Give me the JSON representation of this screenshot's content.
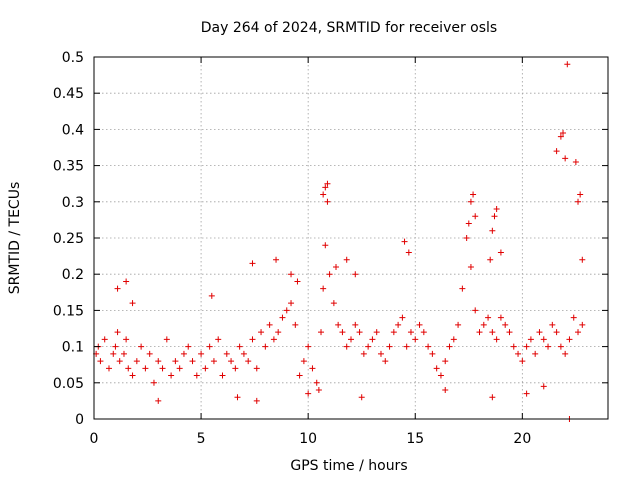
{
  "chart_data": {
    "type": "scatter",
    "title": "Day 264 of 2024, SRMTID for receiver osls",
    "xlabel": "GPS time / hours",
    "ylabel": "SRMTID / TECUs",
    "xlim": [
      0,
      24
    ],
    "ylim": [
      0,
      0.5
    ],
    "xticks": [
      0,
      5,
      10,
      15,
      20
    ],
    "xtick_labels": [
      "0",
      "5",
      "10",
      "15",
      "20"
    ],
    "yticks": [
      0,
      0.05,
      0.1,
      0.15,
      0.2,
      0.25,
      0.3,
      0.35,
      0.4,
      0.45,
      0.5
    ],
    "ytick_labels": [
      "0",
      "0.05",
      "0.1",
      "0.15",
      "0.2",
      "0.25",
      "0.3",
      "0.35",
      "0.4",
      "0.45",
      "0.5"
    ],
    "grid": true,
    "legend": "none",
    "marker": "plus",
    "color": "#e00000",
    "series": [
      {
        "x": [
          0.1,
          0.2,
          0.3,
          0.5,
          0.7,
          0.9,
          1.0,
          1.1,
          1.2,
          1.4,
          1.5,
          1.6,
          1.8,
          2.0,
          2.2,
          2.4,
          2.6,
          2.8,
          3.0,
          3.2,
          3.4,
          3.6,
          3.8,
          4.0,
          4.2,
          4.4,
          4.6,
          4.8,
          5.0,
          5.2,
          5.4,
          5.6,
          5.8,
          6.0,
          6.2,
          6.4,
          6.6,
          6.8,
          7.0,
          7.2,
          7.4,
          7.6,
          7.8,
          8.0,
          8.2,
          8.4,
          8.6,
          8.8,
          9.0,
          9.2,
          9.4,
          9.6,
          9.8,
          10.0,
          10.2,
          10.4,
          10.6,
          10.7,
          10.8,
          10.9,
          11.0,
          11.2,
          11.4,
          11.6,
          11.8,
          12.0,
          12.2,
          12.4,
          12.6,
          12.8,
          13.0,
          13.2,
          13.4,
          13.6,
          13.8,
          14.0,
          14.2,
          14.4,
          14.6,
          14.8,
          15.0,
          15.2,
          15.4,
          15.6,
          15.8,
          16.0,
          16.2,
          16.4,
          16.6,
          16.8,
          17.0,
          17.2,
          17.4,
          17.6,
          17.8,
          18.0,
          18.2,
          18.4,
          18.6,
          18.8,
          19.0,
          19.2,
          19.4,
          19.6,
          19.8,
          20.0,
          20.2,
          20.4,
          20.6,
          20.8,
          21.0,
          21.2,
          21.4,
          21.6,
          21.8,
          22.0,
          22.2,
          22.4,
          22.6,
          22.8,
          1.1,
          1.5,
          1.8,
          5.5,
          7.4,
          8.5,
          9.2,
          9.5,
          10.8,
          10.9,
          10.7,
          11.3,
          11.8,
          12.2,
          14.5,
          14.7,
          17.5,
          17.6,
          17.7,
          17.8,
          18.5,
          18.6,
          18.7,
          18.8,
          19.0,
          21.6,
          21.8,
          21.9,
          22.0,
          22.1,
          22.5,
          22.6,
          22.7,
          22.8,
          3.0,
          6.7,
          7.6,
          10.0,
          10.5,
          12.5,
          16.4,
          18.6,
          20.2,
          21.0,
          22.2
        ],
        "y": [
          0.09,
          0.1,
          0.08,
          0.11,
          0.07,
          0.09,
          0.1,
          0.12,
          0.08,
          0.09,
          0.11,
          0.07,
          0.06,
          0.08,
          0.1,
          0.07,
          0.09,
          0.05,
          0.08,
          0.07,
          0.11,
          0.06,
          0.08,
          0.07,
          0.09,
          0.1,
          0.08,
          0.06,
          0.09,
          0.07,
          0.1,
          0.08,
          0.11,
          0.06,
          0.09,
          0.08,
          0.07,
          0.1,
          0.09,
          0.08,
          0.11,
          0.07,
          0.12,
          0.1,
          0.13,
          0.11,
          0.12,
          0.14,
          0.15,
          0.16,
          0.13,
          0.06,
          0.08,
          0.1,
          0.07,
          0.05,
          0.12,
          0.18,
          0.24,
          0.3,
          0.2,
          0.16,
          0.13,
          0.12,
          0.1,
          0.11,
          0.13,
          0.12,
          0.09,
          0.1,
          0.11,
          0.12,
          0.09,
          0.08,
          0.1,
          0.12,
          0.13,
          0.14,
          0.1,
          0.12,
          0.11,
          0.13,
          0.12,
          0.1,
          0.09,
          0.07,
          0.06,
          0.08,
          0.1,
          0.11,
          0.13,
          0.18,
          0.25,
          0.21,
          0.15,
          0.12,
          0.13,
          0.14,
          0.12,
          0.11,
          0.14,
          0.13,
          0.12,
          0.1,
          0.09,
          0.08,
          0.1,
          0.11,
          0.09,
          0.12,
          0.11,
          0.1,
          0.13,
          0.12,
          0.1,
          0.09,
          0.11,
          0.14,
          0.12,
          0.13,
          0.18,
          0.19,
          0.16,
          0.17,
          0.215,
          0.22,
          0.2,
          0.19,
          0.32,
          0.325,
          0.31,
          0.21,
          0.22,
          0.2,
          0.245,
          0.23,
          0.27,
          0.3,
          0.31,
          0.28,
          0.22,
          0.26,
          0.28,
          0.29,
          0.23,
          0.37,
          0.39,
          0.395,
          0.36,
          0.49,
          0.355,
          0.3,
          0.31,
          0.22,
          0.025,
          0.03,
          0.025,
          0.035,
          0.04,
          0.03,
          0.04,
          0.03,
          0.035,
          0.045,
          0.0
        ]
      }
    ]
  }
}
